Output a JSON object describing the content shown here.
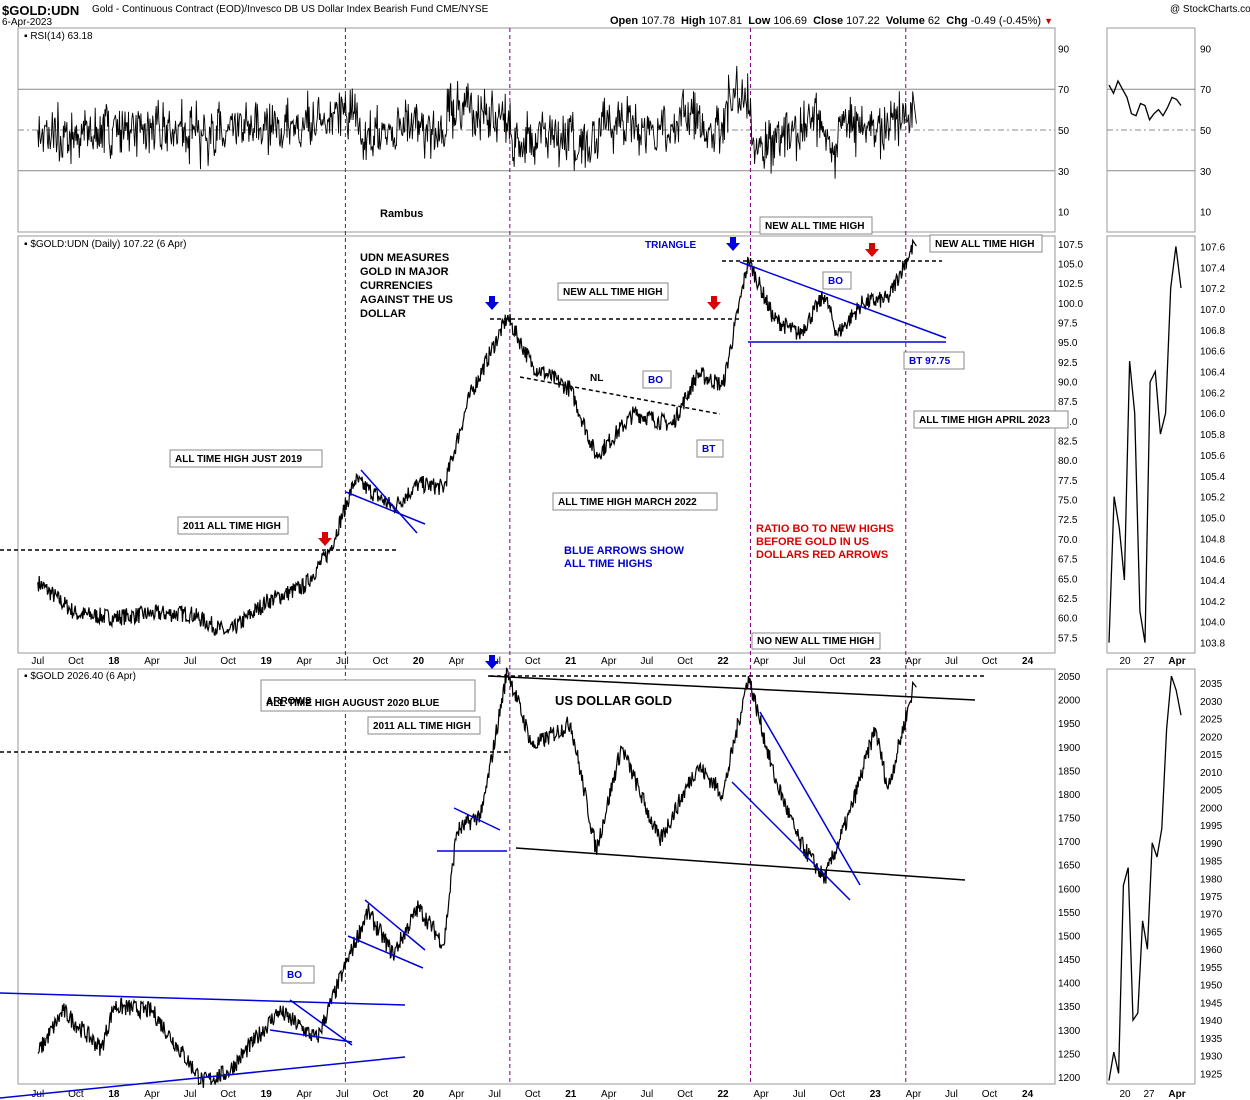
{
  "header": {
    "symbol": "$GOLD:UDN",
    "description": "Gold - Continuous Contract (EOD)/Invesco DB US Dollar Index Bearish Fund CME/NYSE",
    "date": "6-Apr-2023",
    "copyright": "@ StockCharts.com",
    "open_label": "Open",
    "open": "107.78",
    "high_label": "High",
    "high": "107.81",
    "low_label": "Low",
    "low": "106.69",
    "close_label": "Close",
    "close": "107.22",
    "volume_label": "Volume",
    "volume": "62",
    "chg_label": "Chg",
    "chg": "-0.49 (-0.45%)"
  },
  "chart_data": [
    {
      "id": "rsi",
      "type": "line",
      "legend": "RSI(14) 63.18",
      "ylim": [
        0,
        100
      ],
      "ticks": [
        10,
        30,
        50,
        70,
        90
      ],
      "reference_lines": [
        30,
        50,
        70
      ],
      "annotations": [
        "Rambus"
      ],
      "mini_values": [
        72,
        68,
        74,
        70,
        66,
        58,
        57,
        63,
        62,
        55,
        58,
        60,
        57,
        61,
        66,
        65,
        62
      ]
    },
    {
      "id": "ratio",
      "type": "line",
      "legend": "$GOLD:UDN (Daily) 107.22 (6 Apr)",
      "ylim": [
        55.5,
        108.5
      ],
      "ticks": [
        57.5,
        60.0,
        62.5,
        65.0,
        67.5,
        70.0,
        72.5,
        75.0,
        77.5,
        80.0,
        82.5,
        85.0,
        87.5,
        90.0,
        92.5,
        95.0,
        97.5,
        100.0,
        102.5,
        105.0,
        107.5
      ],
      "x_labels": [
        "Jul",
        "Oct",
        "18",
        "Apr",
        "Jul",
        "Oct",
        "19",
        "Apr",
        "Jul",
        "Oct",
        "20",
        "Apr",
        "Jul",
        "Oct",
        "21",
        "Apr",
        "Jul",
        "Oct",
        "22",
        "Apr",
        "Jul",
        "Oct",
        "23",
        "Apr",
        "Jul",
        "Oct",
        "24"
      ],
      "key_points": [
        {
          "date": "2017-07",
          "value": 64.5
        },
        {
          "date": "2017-10",
          "value": 60.5
        },
        {
          "date": "2018-01",
          "value": 60.0
        },
        {
          "date": "2018-04",
          "value": 60.5
        },
        {
          "date": "2018-07",
          "value": 60.5
        },
        {
          "date": "2018-10",
          "value": 58.0
        },
        {
          "date": "2019-01",
          "value": 62.0
        },
        {
          "date": "2019-04",
          "value": 64.0
        },
        {
          "date": "2019-06",
          "value": 68.5
        },
        {
          "date": "2019-08",
          "value": 77.5
        },
        {
          "date": "2019-11",
          "value": 74.0
        },
        {
          "date": "2020-01",
          "value": 77.0
        },
        {
          "date": "2020-03",
          "value": 76.5
        },
        {
          "date": "2020-05",
          "value": 88.0
        },
        {
          "date": "2020-08",
          "value": 98.2
        },
        {
          "date": "2020-10",
          "value": 92.0
        },
        {
          "date": "2021-01",
          "value": 89.0
        },
        {
          "date": "2021-03",
          "value": 80.5
        },
        {
          "date": "2021-06",
          "value": 86.0
        },
        {
          "date": "2021-09",
          "value": 84.5
        },
        {
          "date": "2021-11",
          "value": 91.0
        },
        {
          "date": "2022-01",
          "value": 89.5
        },
        {
          "date": "2022-03",
          "value": 105.5
        },
        {
          "date": "2022-05",
          "value": 98.0
        },
        {
          "date": "2022-07",
          "value": 96.0
        },
        {
          "date": "2022-09",
          "value": 101.0
        },
        {
          "date": "2022-10",
          "value": 96.0
        },
        {
          "date": "2022-12",
          "value": 100.0
        },
        {
          "date": "2023-02",
          "value": 100.5
        },
        {
          "date": "2023-03",
          "value": 104.0
        },
        {
          "date": "2023-04",
          "value": 107.22
        }
      ],
      "mini_ylim": [
        103.7,
        107.7
      ],
      "mini_ticks": [
        103.8,
        104.0,
        104.2,
        104.4,
        104.6,
        104.8,
        105.0,
        105.2,
        105.4,
        105.6,
        105.8,
        106.0,
        106.2,
        106.4,
        106.6,
        106.8,
        107.0,
        107.2,
        107.4,
        107.6
      ],
      "mini_x_labels": [
        "20",
        "27",
        "Apr"
      ],
      "mini_values": [
        103.8,
        105.2,
        104.9,
        104.4,
        106.5,
        106.0,
        104.1,
        103.8,
        106.3,
        106.4,
        105.8,
        106.0,
        107.2,
        107.6,
        107.2
      ],
      "annotations": [
        "UDN MEASURES",
        "GOLD IN MAJOR",
        "CURRENCIES",
        "AGAINST THE US",
        "DOLLAR",
        "NEW ALL TIME HIGH",
        "TRIANGLE",
        "NEW ALL TIME HIGH",
        "NEW ALL TIME HIGH",
        "BO",
        "NL",
        "BO",
        "BT",
        "BT 97.75",
        "ALL TIME HIGH APRIL 2023",
        "ALL TIME HIGH JUST 2019",
        "ALL TIME HIGH MARCH 2022",
        "2011 ALL TIME HIGH",
        "BLUE ARROWS SHOW",
        "ALL TIME HIGHS",
        "RATIO BO TO NEW HIGHS",
        "BEFORE GOLD IN US",
        "DOLLARS RED ARROWS",
        "NO NEW ALL TIME HIGH"
      ]
    },
    {
      "id": "gold",
      "type": "line",
      "legend": "$GOLD 2026.40 (6 Apr)",
      "ylim": [
        1185,
        2065
      ],
      "ticks": [
        1200,
        1250,
        1300,
        1350,
        1400,
        1450,
        1500,
        1550,
        1600,
        1650,
        1700,
        1750,
        1800,
        1850,
        1900,
        1950,
        2000,
        2050
      ],
      "x_labels": [
        "Jul",
        "Oct",
        "18",
        "Apr",
        "Jul",
        "Oct",
        "19",
        "Apr",
        "Jul",
        "Oct",
        "20",
        "Apr",
        "Jul",
        "Oct",
        "21",
        "Apr",
        "Jul",
        "Oct",
        "22",
        "Apr",
        "Jul",
        "Oct",
        "23",
        "Apr",
        "Jul",
        "Oct",
        "24"
      ],
      "key_points": [
        {
          "date": "2017-07",
          "value": 1250
        },
        {
          "date": "2017-09",
          "value": 1340
        },
        {
          "date": "2017-12",
          "value": 1260
        },
        {
          "date": "2018-01",
          "value": 1350
        },
        {
          "date": "2018-04",
          "value": 1340
        },
        {
          "date": "2018-08",
          "value": 1190
        },
        {
          "date": "2018-10",
          "value": 1210
        },
        {
          "date": "2019-02",
          "value": 1340
        },
        {
          "date": "2019-05",
          "value": 1280
        },
        {
          "date": "2019-07",
          "value": 1420
        },
        {
          "date": "2019-09",
          "value": 1550
        },
        {
          "date": "2019-11",
          "value": 1460
        },
        {
          "date": "2020-01",
          "value": 1560
        },
        {
          "date": "2020-03",
          "value": 1480
        },
        {
          "date": "2020-04",
          "value": 1720
        },
        {
          "date": "2020-06",
          "value": 1760
        },
        {
          "date": "2020-08",
          "value": 2063
        },
        {
          "date": "2020-10",
          "value": 1900
        },
        {
          "date": "2021-01",
          "value": 1950
        },
        {
          "date": "2021-03",
          "value": 1680
        },
        {
          "date": "2021-05",
          "value": 1900
        },
        {
          "date": "2021-08",
          "value": 1700
        },
        {
          "date": "2021-11",
          "value": 1860
        },
        {
          "date": "2022-01",
          "value": 1800
        },
        {
          "date": "2022-03",
          "value": 2050
        },
        {
          "date": "2022-05",
          "value": 1840
        },
        {
          "date": "2022-07",
          "value": 1700
        },
        {
          "date": "2022-09",
          "value": 1620
        },
        {
          "date": "2022-11",
          "value": 1760
        },
        {
          "date": "2023-01",
          "value": 1940
        },
        {
          "date": "2023-02",
          "value": 1810
        },
        {
          "date": "2023-04",
          "value": 2026.4
        }
      ],
      "mini_ylim": [
        1922,
        2039
      ],
      "mini_ticks": [
        1925,
        1930,
        1935,
        1940,
        1945,
        1950,
        1955,
        1960,
        1965,
        1970,
        1975,
        1980,
        1985,
        1990,
        1995,
        2000,
        2005,
        2010,
        2015,
        2020,
        2025,
        2030,
        2035
      ],
      "mini_x_labels": [
        "20",
        "27",
        "Apr"
      ],
      "mini_values": [
        1923,
        1931,
        1925,
        1978,
        1983,
        1940,
        1942,
        1968,
        1960,
        1990,
        1986,
        1994,
        2022,
        2037,
        2033,
        2026
      ],
      "annotations": [
        "ALL TIME HIGH AUGUST 2020 BLUE",
        "ARROWS",
        "US DOLLAR GOLD",
        "2011 ALL TIME HIGH",
        "BO"
      ]
    }
  ],
  "colors": {
    "price_line": "#000000",
    "trendline_blue": "#0000dd",
    "arrow_blue": "#0000dd",
    "arrow_red": "#dd0000",
    "vertical_marker": "#800080",
    "grid": "#bbbbbb",
    "red_text": "#dd0000",
    "blue_text": "#0000cc"
  }
}
